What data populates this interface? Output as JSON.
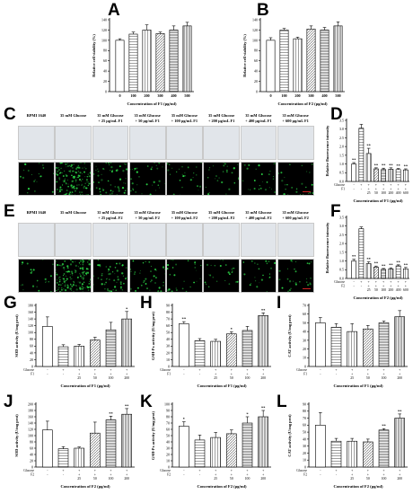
{
  "panels": {
    "A": "A",
    "B": "B",
    "C": "C",
    "D": "D",
    "E": "E",
    "F": "F",
    "G": "G",
    "H": "H",
    "I": "I",
    "J": "J",
    "K": "K",
    "L": "L"
  },
  "image_rows": {
    "C": {
      "headers": [
        [
          "RPMI 1640"
        ],
        [
          "35 mM Glucose"
        ],
        [
          "35 mM Glucose",
          "+ 25 μg/mL  F1"
        ],
        [
          "35 mM Glucose",
          "+ 50 μg/mL  F1"
        ],
        [
          "35 mM Glucose",
          "+ 100 μg/mL  F1"
        ],
        [
          "35 mM Glucose",
          "+ 200 μg/mL  F1"
        ],
        [
          "35 mM Glucose",
          "+ 400 μg/mL  F1"
        ],
        [
          "35 mM Glucose",
          "+ 600 μg/mL  F1"
        ]
      ],
      "fluorescence": [
        0.08,
        1.0,
        0.35,
        0.18,
        0.14,
        0.14,
        0.12,
        0.12
      ]
    },
    "E": {
      "headers": [
        [
          "RPMI 1640"
        ],
        [
          "35 mM Glucose"
        ],
        [
          "35 mM Glucose",
          "+ 25 μg/mL  F2"
        ],
        [
          "35 mM Glucose",
          "+ 50 μg/mL  F2"
        ],
        [
          "35 mM Glucose",
          "+ 100 μg/mL  F2"
        ],
        [
          "35 mM Glucose",
          "+ 200 μg/mL  F2"
        ],
        [
          "35 mM Glucose",
          "+ 400 μg/mL  F2"
        ],
        [
          "35 mM Glucose",
          "+ 600 μg/mL  F2"
        ]
      ],
      "fluorescence": [
        0.1,
        1.0,
        0.3,
        0.2,
        0.15,
        0.12,
        0.12,
        0.14
      ]
    }
  },
  "colors": {
    "fluorescence": "#2ee04a",
    "scale_bar": "#cc2222"
  },
  "chart_data": [
    {
      "id": "A",
      "type": "bar",
      "ylabel": "Relative cell viability (%)",
      "xlabel": "Concentration of F1 (μg/ml)",
      "categories": [
        "0",
        "100",
        "200",
        "300",
        "400",
        "500"
      ],
      "values": [
        100,
        112,
        120,
        113,
        120,
        128
      ],
      "errors": [
        3,
        4,
        10,
        3,
        8,
        7
      ],
      "ylim": [
        0,
        140
      ],
      "yticks": [
        "0",
        "20",
        "40",
        "60",
        "80",
        "100",
        "120",
        "140"
      ],
      "sig": [
        "",
        "",
        "",
        "",
        "",
        ""
      ]
    },
    {
      "id": "B",
      "type": "bar",
      "ylabel": "Relative cell viability (%)",
      "xlabel": "Concentration of F2 (μg/ml)",
      "categories": [
        "0",
        "100",
        "200",
        "300",
        "400",
        "500"
      ],
      "values": [
        100,
        120,
        103,
        122,
        120,
        128
      ],
      "errors": [
        5,
        3,
        3,
        6,
        5,
        8
      ],
      "ylim": [
        0,
        140
      ],
      "yticks": [
        "0",
        "20",
        "40",
        "60",
        "80",
        "100",
        "120",
        "140"
      ],
      "sig": [
        "",
        "",
        "",
        "",
        "",
        ""
      ]
    },
    {
      "id": "D",
      "type": "bar",
      "ylabel": "Relative fluorescence intensity",
      "xlabel": "Concentration of F1 (μg/ml)",
      "categories": [
        "",
        "",
        "25",
        "50",
        "100",
        "200",
        "400",
        "600"
      ],
      "values": [
        1.0,
        3.05,
        1.6,
        0.72,
        0.68,
        0.7,
        0.68,
        0.66
      ],
      "errors": [
        0.08,
        0.22,
        0.3,
        0.06,
        0.08,
        0.08,
        0.06,
        0.06
      ],
      "ylim": [
        0,
        3.5
      ],
      "yticks": [
        "0.0",
        "0.5",
        "1.0",
        "1.5",
        "2.0",
        "2.5",
        "3.0",
        "3.5"
      ],
      "sig": [
        "**",
        "",
        "**",
        "**",
        "**",
        "**",
        "**",
        "**"
      ],
      "glucose": [
        "-",
        "+",
        "+",
        "+",
        "+",
        "+",
        "+",
        "+"
      ],
      "fraction": [
        "-",
        "-",
        "+",
        "+",
        "+",
        "+",
        "+",
        "+"
      ],
      "row_labels": [
        "Glucose",
        "F1"
      ]
    },
    {
      "id": "F",
      "type": "bar",
      "ylabel": "Relative fluorescence intensity",
      "xlabel": "Concentration of F2 (μg/ml)",
      "categories": [
        "",
        "",
        "25",
        "50",
        "100",
        "200",
        "400",
        "600"
      ],
      "values": [
        1.0,
        2.85,
        0.85,
        0.65,
        0.52,
        0.55,
        0.72,
        0.55
      ],
      "errors": [
        0.1,
        0.1,
        0.1,
        0.06,
        0.05,
        0.06,
        0.06,
        0.08
      ],
      "ylim": [
        0,
        3.5
      ],
      "yticks": [
        "0.0",
        "0.5",
        "1.0",
        "1.5",
        "2.0",
        "2.5",
        "3.0",
        "3.5"
      ],
      "sig": [
        "**",
        "",
        "**",
        "**",
        "**",
        "**",
        "**",
        "**"
      ],
      "glucose": [
        "-",
        "+",
        "+",
        "+",
        "+",
        "+",
        "+",
        "+"
      ],
      "fraction": [
        "-",
        "-",
        "+",
        "+",
        "+",
        "+",
        "+",
        "+"
      ],
      "row_labels": [
        "Glucose",
        "F2"
      ]
    },
    {
      "id": "G",
      "type": "bar",
      "ylabel": "SOD activity (U/mg prot)",
      "xlabel": "Concentration of F1 (μg/ml)",
      "categories": [
        "",
        "",
        "25",
        "50",
        "100",
        "200"
      ],
      "values": [
        118,
        58,
        60,
        78,
        108,
        140
      ],
      "errors": [
        28,
        6,
        5,
        8,
        22,
        22
      ],
      "ylim": [
        0,
        180
      ],
      "yticks": [
        "0",
        "20",
        "40",
        "60",
        "80",
        "100",
        "120",
        "140",
        "160",
        "180"
      ],
      "sig": [
        "",
        "",
        "",
        "",
        "",
        "*"
      ],
      "glucose": [
        "-",
        "+",
        "+",
        "+",
        "+",
        "+"
      ],
      "fraction": [
        "-",
        "-",
        "+",
        "+",
        "+",
        "+"
      ],
      "row_labels": [
        "Glucose",
        "F1"
      ]
    },
    {
      "id": "H",
      "type": "bar",
      "ylabel": "GSH-Px activity (U/mg prot)",
      "xlabel": "Concentration of F1 (μg/ml)",
      "categories": [
        "",
        "",
        "25",
        "50",
        "100",
        "200"
      ],
      "values": [
        63,
        38,
        37,
        48,
        53,
        75
      ],
      "errors": [
        3,
        3,
        3,
        3,
        6,
        4
      ],
      "ylim": [
        0,
        90
      ],
      "yticks": [
        "0",
        "10",
        "20",
        "30",
        "40",
        "50",
        "60",
        "70",
        "80",
        "90"
      ],
      "sig": [
        "**",
        "",
        "",
        "*",
        "",
        "**"
      ],
      "glucose": [
        "-",
        "+",
        "+",
        "+",
        "+",
        "+"
      ],
      "fraction": [
        "-",
        "-",
        "+",
        "+",
        "+",
        "+"
      ],
      "row_labels": [
        "Glucose",
        "F1"
      ]
    },
    {
      "id": "I",
      "type": "bar",
      "ylabel": "CAT activity (U/mg prot)",
      "xlabel": "Concentration of F1 (μg/ml)",
      "categories": [
        "",
        "",
        "25",
        "50",
        "100",
        "200"
      ],
      "values": [
        50,
        45,
        40,
        43,
        50,
        57
      ],
      "errors": [
        6,
        4,
        9,
        4,
        2,
        7
      ],
      "ylim": [
        0,
        70
      ],
      "yticks": [
        "0",
        "10",
        "20",
        "30",
        "40",
        "50",
        "60",
        "70"
      ],
      "sig": [
        "",
        "",
        "",
        "",
        "",
        ""
      ],
      "glucose": [
        "-",
        "+",
        "+",
        "+",
        "+",
        "+"
      ],
      "fraction": [
        "-",
        "-",
        "+",
        "+",
        "+",
        "+"
      ],
      "row_labels": [
        "Glucose",
        "F1"
      ]
    },
    {
      "id": "J",
      "type": "bar",
      "ylabel": "SOD activity (U/mg prot)",
      "xlabel": "Concentration of F2 (μg/ml)",
      "categories": [
        "",
        "",
        "25",
        "50",
        "100",
        "200"
      ],
      "values": [
        118,
        58,
        60,
        108,
        150,
        168
      ],
      "errors": [
        28,
        7,
        4,
        35,
        12,
        18
      ],
      "ylim": [
        0,
        200
      ],
      "yticks": [
        "0",
        "20",
        "40",
        "60",
        "80",
        "100",
        "120",
        "140",
        "160",
        "180",
        "200"
      ],
      "sig": [
        "",
        "",
        "",
        "",
        "**",
        "**"
      ],
      "glucose": [
        "-",
        "+",
        "+",
        "+",
        "+",
        "+"
      ],
      "fraction": [
        "-",
        "-",
        "+",
        "+",
        "+",
        "+"
      ],
      "row_labels": [
        "Glucose",
        "F2"
      ]
    },
    {
      "id": "K",
      "type": "bar",
      "ylabel": "GSH-Px activity (U/mg prot)",
      "xlabel": "Concentration of F2 (μg/ml)",
      "categories": [
        "",
        "",
        "25",
        "50",
        "100",
        "200"
      ],
      "values": [
        65,
        43,
        47,
        53,
        70,
        80
      ],
      "errors": [
        7,
        8,
        8,
        6,
        10,
        10
      ],
      "ylim": [
        0,
        100
      ],
      "yticks": [
        "0",
        "10",
        "20",
        "30",
        "40",
        "50",
        "60",
        "70",
        "80",
        "90",
        "100"
      ],
      "sig": [
        "*",
        "",
        "",
        "",
        "*",
        "**"
      ],
      "glucose": [
        "-",
        "+",
        "+",
        "+",
        "+",
        "+"
      ],
      "fraction": [
        "-",
        "-",
        "+",
        "+",
        "+",
        "+"
      ],
      "row_labels": [
        "Glucose",
        "F2"
      ]
    },
    {
      "id": "L",
      "type": "bar",
      "ylabel": "CAT activity (U/mg prot)",
      "xlabel": "Concentration of F2 (μg/ml)",
      "categories": [
        "",
        "",
        "25",
        "50",
        "100",
        "200"
      ],
      "values": [
        60,
        37,
        37,
        36,
        53,
        70
      ],
      "errors": [
        18,
        4,
        4,
        4,
        2,
        6
      ],
      "ylim": [
        0,
        90
      ],
      "yticks": [
        "0",
        "10",
        "20",
        "30",
        "40",
        "50",
        "60",
        "70",
        "80",
        "90"
      ],
      "sig": [
        "",
        "",
        "",
        "",
        "**",
        "**"
      ],
      "glucose": [
        "-",
        "+",
        "+",
        "+",
        "+",
        "+"
      ],
      "fraction": [
        "-",
        "-",
        "+",
        "+",
        "+",
        "+"
      ],
      "row_labels": [
        "Glucose",
        "F2"
      ]
    }
  ]
}
